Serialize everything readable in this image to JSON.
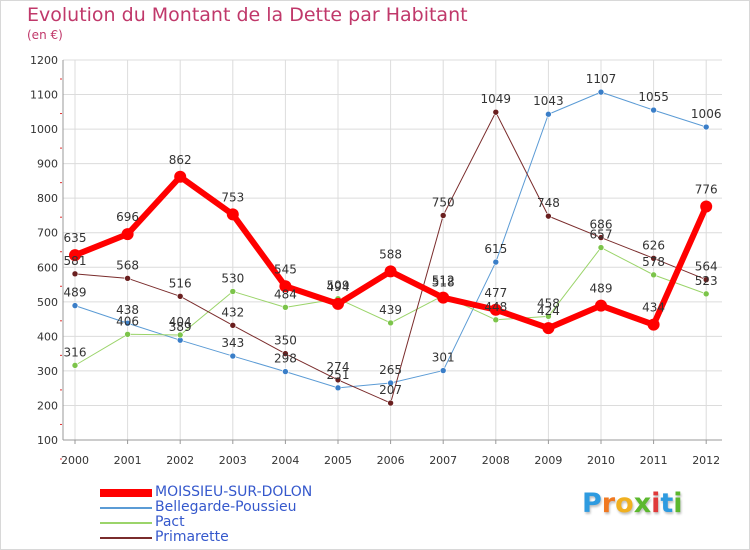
{
  "title": "Evolution du Montant de la Dette par Habitant",
  "subtitle": "(en €)",
  "logo": {
    "letters": [
      "P",
      "r",
      "o",
      "x",
      "i",
      "t",
      "i"
    ],
    "colors": [
      "#2e9be0",
      "#f07820",
      "#f0b020",
      "#5cb82e",
      "#e03a3a",
      "#2e9be0",
      "#5cb82e"
    ]
  },
  "chart_data": {
    "type": "line",
    "x": [
      "2000",
      "2001",
      "2002",
      "2003",
      "2004",
      "2005",
      "2006",
      "2007",
      "2008",
      "2009",
      "2010",
      "2011",
      "2012"
    ],
    "ylim": [
      100,
      1200
    ],
    "yticks": [
      "100",
      "200",
      "300",
      "400",
      "500",
      "600",
      "700",
      "800",
      "900",
      "1000",
      "1100",
      "1200"
    ],
    "grid": true,
    "legend_position": "bottom-left",
    "series": [
      {
        "name": "Bellegarde-Poussieu",
        "color": "#5b9bd5",
        "width": 1,
        "marker": "#3a7ec8",
        "values": [
          489,
          438,
          389,
          343,
          298,
          251,
          265,
          301,
          615,
          1043,
          1107,
          1055,
          1006
        ]
      },
      {
        "name": "Pact",
        "color": "#9bd46a",
        "width": 1,
        "marker": "#7cc44a",
        "values": [
          316,
          406,
          404,
          530,
          484,
          509,
          439,
          518,
          448,
          458,
          657,
          578,
          523
        ]
      },
      {
        "name": "Primarette",
        "color": "#7a2c2c",
        "width": 1,
        "marker": "#6a1f1f",
        "values": [
          581,
          568,
          516,
          432,
          350,
          274,
          207,
          750,
          1049,
          748,
          686,
          626,
          564
        ]
      },
      {
        "name": "MOISSIEU-SUR-DOLON",
        "color": "#ff0000",
        "width": 6,
        "marker": "#ff0000",
        "values": [
          635,
          696,
          862,
          753,
          545,
          494,
          588,
          512,
          477,
          424,
          489,
          434,
          776
        ]
      }
    ],
    "legend_order": [
      "MOISSIEU-SUR-DOLON",
      "Bellegarde-Poussieu",
      "Pact",
      "Primarette"
    ]
  }
}
